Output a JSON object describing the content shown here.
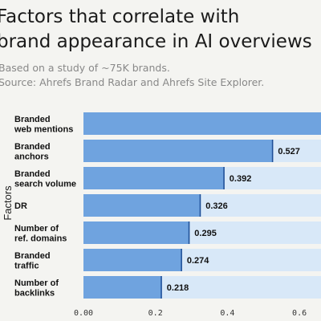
{
  "chart_data": {
    "type": "bar",
    "orientation": "horizontal",
    "title": "Factors that correlate with\nbrand appearance in AI overviews",
    "subtitle": "Based on a study of ~75K brands.",
    "source": "Source: Ahrefs Brand Radar and Ahrefs Site Explorer.",
    "ylabel": "Factors",
    "xlabel": "",
    "categories": [
      [
        "Branded",
        "web mentions"
      ],
      [
        "Branded",
        "anchors"
      ],
      [
        "Branded",
        "search volume"
      ],
      [
        "DR"
      ],
      [
        "Number of",
        "ref. domains"
      ],
      [
        "Branded",
        "traffic"
      ],
      [
        "Number of",
        "backlinks"
      ]
    ],
    "values": [
      0.664,
      0.527,
      0.392,
      0.326,
      0.295,
      0.274,
      0.218
    ],
    "value_labels": [
      "",
      "0.527",
      "0.392",
      "0.326",
      "0.295",
      "0.274",
      "0.218"
    ],
    "xlim": [
      0,
      0.66
    ],
    "xticks": [
      "0.00",
      "0.2",
      "0.4",
      "0.6"
    ],
    "xtick_values": [
      0,
      0.2,
      0.4,
      0.6
    ],
    "colors": {
      "bar": "#6fa3df",
      "track": "#d8e8f8",
      "bar_edge": "#1f4f96"
    }
  }
}
